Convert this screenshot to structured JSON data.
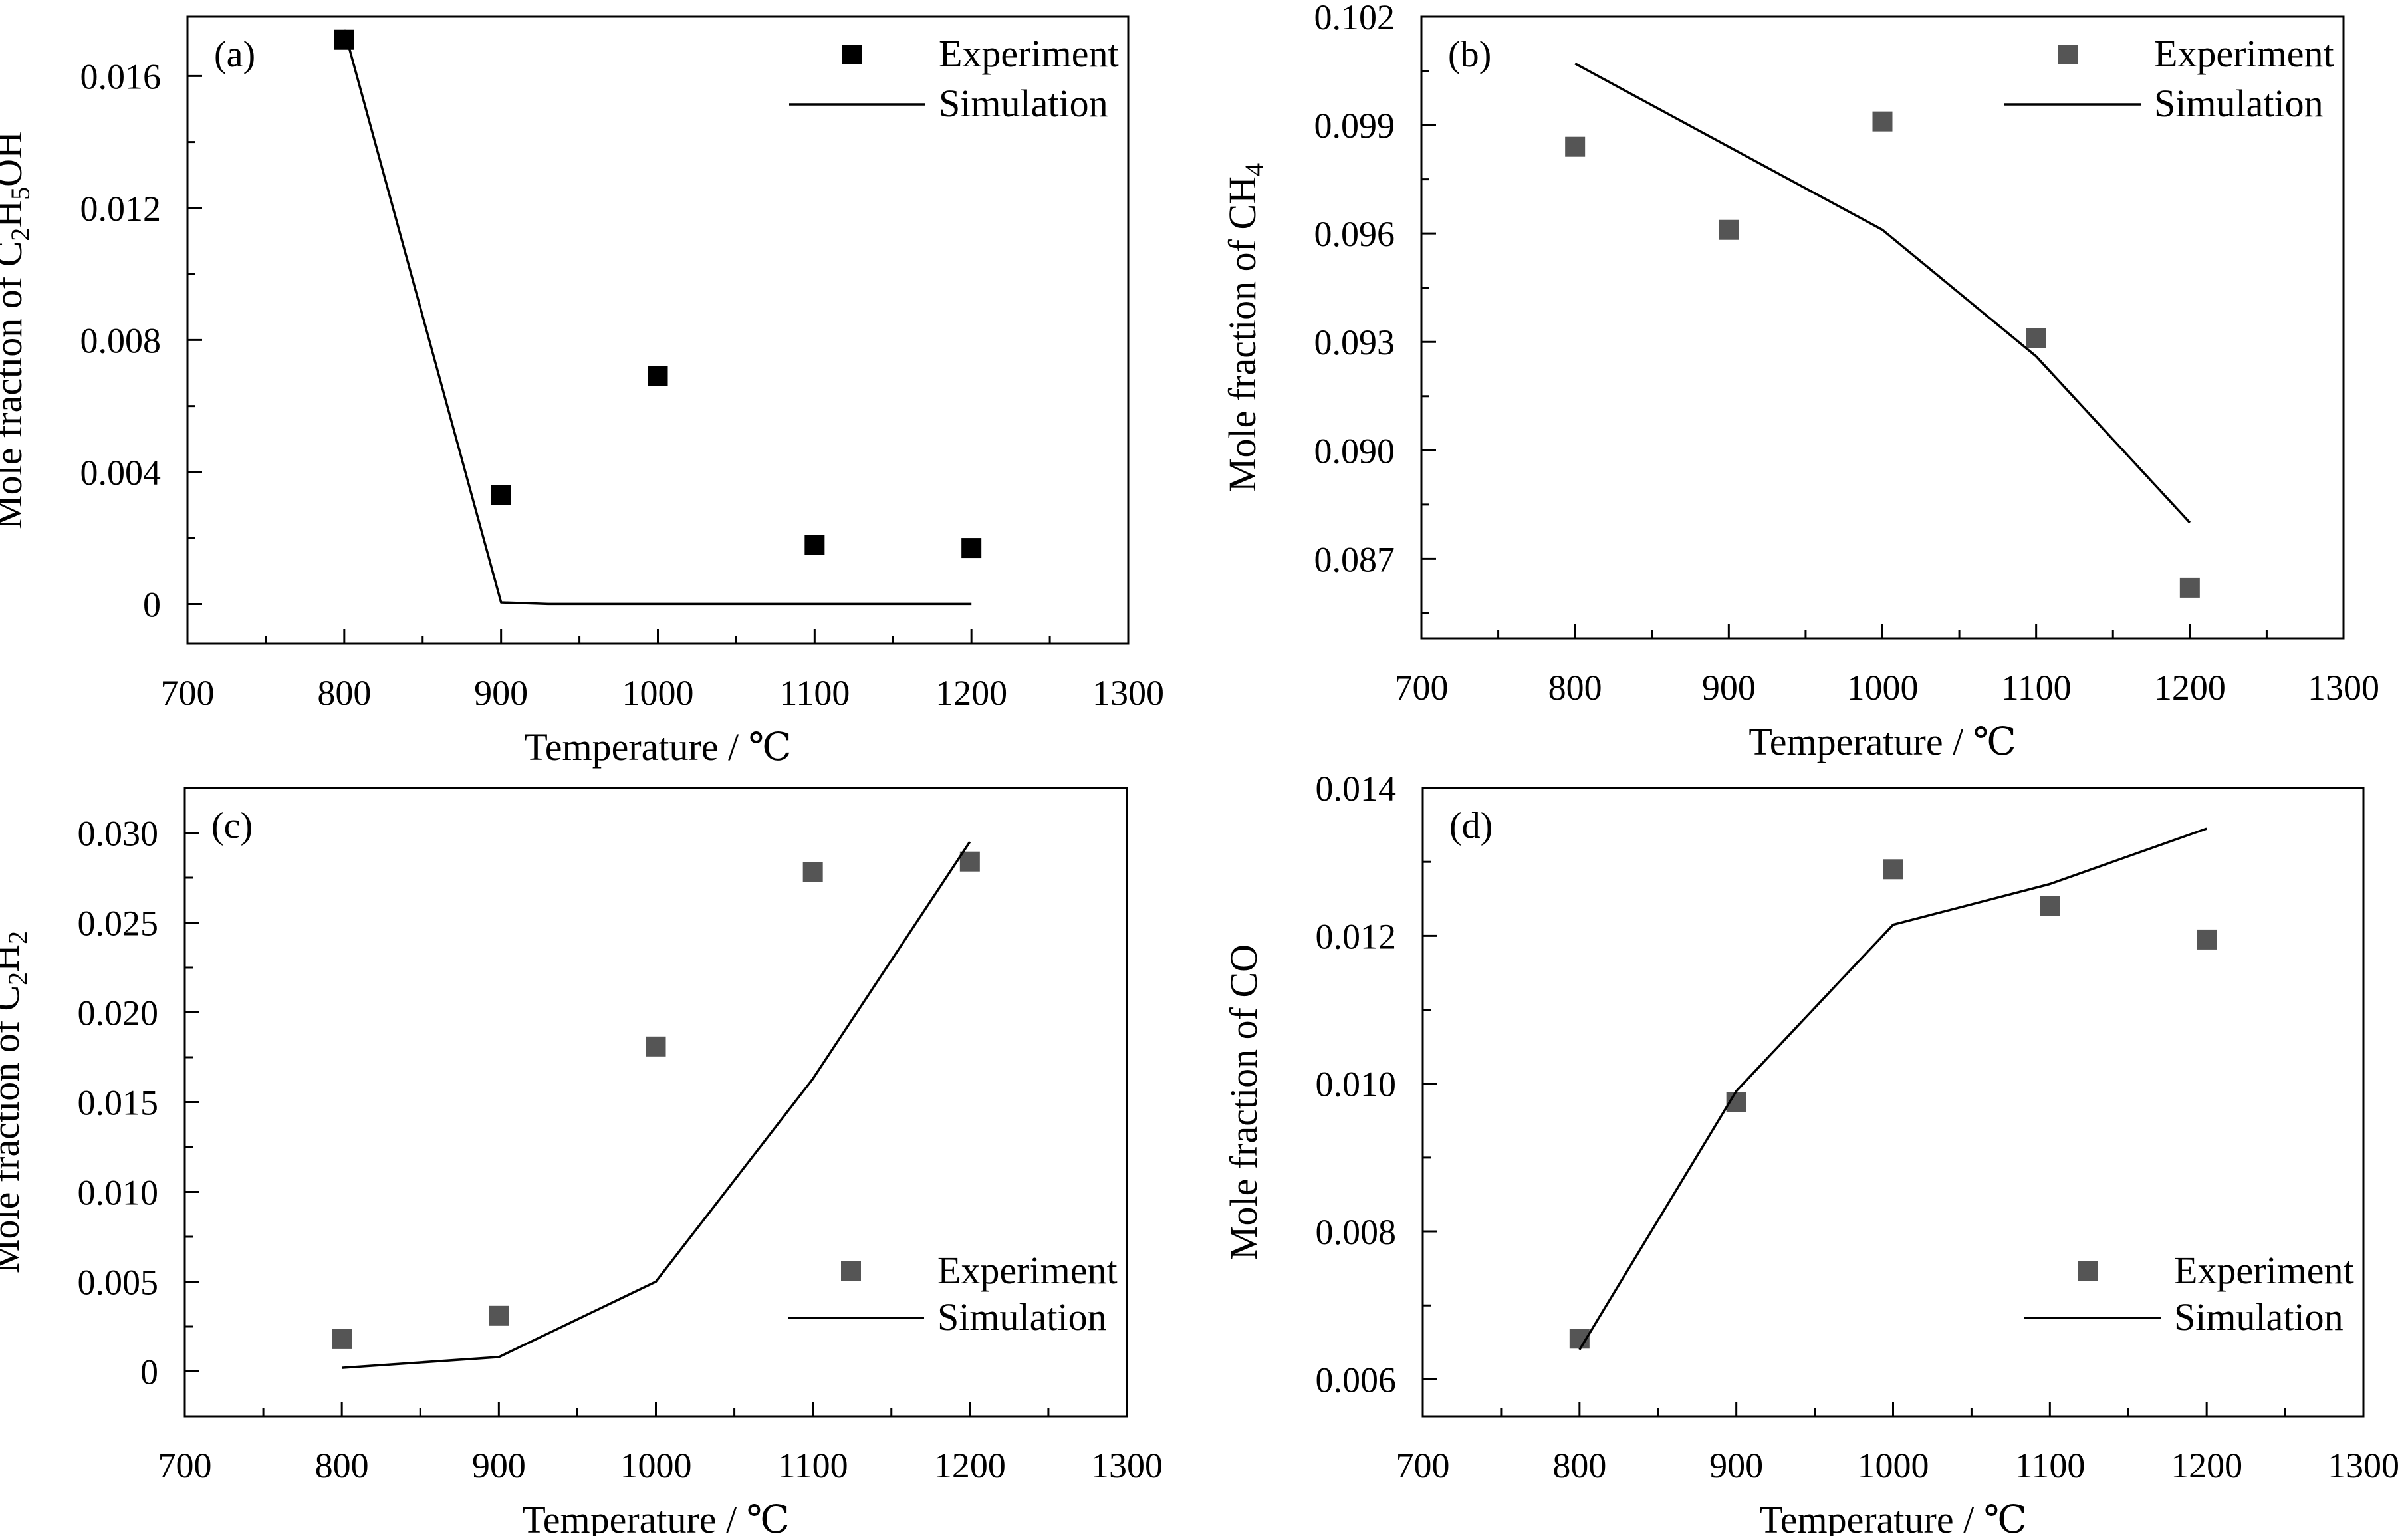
{
  "chart_data": [
    {
      "type": "scatter",
      "panel_label": "(a)",
      "xlabel": "Temperature / ℃",
      "ylabel_parts": [
        {
          "text": "Mole fraction of C",
          "sub": false
        },
        {
          "text": "2",
          "sub": true
        },
        {
          "text": "H",
          "sub": false
        },
        {
          "text": "5",
          "sub": true
        },
        {
          "text": "OH",
          "sub": false
        }
      ],
      "xlim": [
        700,
        1300
      ],
      "ylim": [
        -0.0012,
        0.0178
      ],
      "xticks": [
        700,
        800,
        900,
        1000,
        1100,
        1200,
        1300
      ],
      "xtick_labels": [
        "700",
        "800",
        "900",
        "1000",
        "1100",
        "1200",
        "1300"
      ],
      "yticks": [
        0,
        0.004,
        0.008,
        0.012,
        0.016
      ],
      "ytick_labels": [
        "0",
        "0.004",
        "0.008",
        "0.012",
        "0.016"
      ],
      "legend_position": "top-right",
      "marker_color": "#000000",
      "series": [
        {
          "name": "Experiment",
          "kind": "marker",
          "x": [
            800,
            900,
            1000,
            1100,
            1200
          ],
          "y": [
            0.0171,
            0.0033,
            0.0069,
            0.0018,
            0.0017
          ]
        },
        {
          "name": "Simulation",
          "kind": "line",
          "x": [
            800,
            900,
            930,
            1200
          ],
          "y": [
            0.0174,
            5e-05,
            0.0,
            0.0
          ]
        }
      ]
    },
    {
      "type": "scatter",
      "panel_label": "(b)",
      "xlabel": "Temperature / ℃",
      "ylabel_parts": [
        {
          "text": "Mole fraction of CH",
          "sub": false
        },
        {
          "text": "4",
          "sub": true
        }
      ],
      "xlim": [
        700,
        1300
      ],
      "ylim": [
        0.0848,
        0.102
      ],
      "xticks": [
        700,
        800,
        900,
        1000,
        1100,
        1200,
        1300
      ],
      "xtick_labels": [
        "700",
        "800",
        "900",
        "1000",
        "1100",
        "1200",
        "1300"
      ],
      "yticks": [
        0.087,
        0.09,
        0.093,
        0.096,
        0.099,
        0.102
      ],
      "ytick_labels": [
        "0.087",
        "0.090",
        "0.093",
        "0.096",
        "0.099",
        "0.102"
      ],
      "legend_position": "top-right",
      "marker_color": "#555555",
      "series": [
        {
          "name": "Experiment",
          "kind": "marker",
          "x": [
            800,
            900,
            1000,
            1100,
            1200
          ],
          "y": [
            0.0984,
            0.0961,
            0.0991,
            0.0931,
            0.0862
          ]
        },
        {
          "name": "Simulation",
          "kind": "line",
          "x": [
            800,
            900,
            1000,
            1100,
            1200
          ],
          "y": [
            0.1007,
            0.0984,
            0.0961,
            0.0926,
            0.088
          ]
        }
      ]
    },
    {
      "type": "scatter",
      "panel_label": "(c)",
      "xlabel": "Temperature / ℃",
      "ylabel_parts": [
        {
          "text": "Mole fraction of C",
          "sub": false
        },
        {
          "text": "2",
          "sub": true
        },
        {
          "text": "H",
          "sub": false
        },
        {
          "text": "2",
          "sub": true
        }
      ],
      "xlim": [
        700,
        1300
      ],
      "ylim": [
        -0.0025,
        0.0325
      ],
      "xticks": [
        700,
        800,
        900,
        1000,
        1100,
        1200,
        1300
      ],
      "xtick_labels": [
        "700",
        "800",
        "900",
        "1000",
        "1100",
        "1200",
        "1300"
      ],
      "yticks": [
        0,
        0.005,
        0.01,
        0.015,
        0.02,
        0.025,
        0.03
      ],
      "ytick_labels": [
        "0",
        "0.005",
        "0.010",
        "0.015",
        "0.020",
        "0.025",
        "0.030"
      ],
      "legend_position": "bottom-right",
      "marker_color": "#555555",
      "series": [
        {
          "name": "Experiment",
          "kind": "marker",
          "x": [
            800,
            900,
            1000,
            1100,
            1200
          ],
          "y": [
            0.0018,
            0.0031,
            0.0181,
            0.0278,
            0.0284
          ]
        },
        {
          "name": "Simulation",
          "kind": "line",
          "x": [
            800,
            900,
            1000,
            1100,
            1200
          ],
          "y": [
            0.0002,
            0.0008,
            0.005,
            0.0163,
            0.0295
          ]
        }
      ]
    },
    {
      "type": "scatter",
      "panel_label": "(d)",
      "xlabel": "Temperature / ℃",
      "ylabel_parts": [
        {
          "text": "Mole fraction of CO",
          "sub": false
        }
      ],
      "xlim": [
        700,
        1300
      ],
      "ylim": [
        0.0055,
        0.014
      ],
      "xticks": [
        700,
        800,
        900,
        1000,
        1100,
        1200,
        1300
      ],
      "xtick_labels": [
        "700",
        "800",
        "900",
        "1000",
        "1100",
        "1200",
        "1300"
      ],
      "yticks": [
        0.006,
        0.008,
        0.01,
        0.012,
        0.014
      ],
      "ytick_labels": [
        "0.006",
        "0.008",
        "0.010",
        "0.012",
        "0.014"
      ],
      "legend_position": "bottom-right",
      "marker_color": "#555555",
      "series": [
        {
          "name": "Experiment",
          "kind": "marker",
          "x": [
            800,
            900,
            1000,
            1100,
            1200
          ],
          "y": [
            0.00655,
            0.00975,
            0.0129,
            0.0124,
            0.01195
          ]
        },
        {
          "name": "Simulation",
          "kind": "line",
          "x": [
            800,
            900,
            1000,
            1100,
            1200
          ],
          "y": [
            0.0064,
            0.0099,
            0.01215,
            0.0127,
            0.01345
          ]
        }
      ]
    }
  ]
}
